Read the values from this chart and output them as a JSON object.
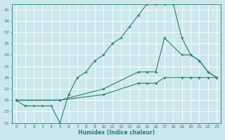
{
  "title": "",
  "xlabel": "Humidex (Indice chaleur)",
  "bg_color": "#cce8ee",
  "line_color": "#2d7d6e",
  "grid_color": "#ffffff",
  "xlim": [
    -0.5,
    23.5
  ],
  "ylim": [
    21,
    42
  ],
  "yticks": [
    21,
    23,
    25,
    27,
    29,
    31,
    33,
    35,
    37,
    39,
    41
  ],
  "xticks": [
    0,
    1,
    2,
    3,
    4,
    5,
    6,
    7,
    8,
    9,
    10,
    11,
    12,
    13,
    14,
    15,
    16,
    17,
    18,
    19,
    20,
    21,
    22,
    23
  ],
  "line1_x": [
    0,
    1,
    2,
    3,
    4,
    5,
    6,
    7,
    8,
    9,
    10,
    11,
    12,
    13,
    14,
    15,
    16,
    17,
    18,
    19,
    20,
    21,
    22,
    23
  ],
  "line1_y": [
    25,
    24,
    24,
    24,
    24,
    21,
    26,
    29,
    30,
    32,
    33,
    35,
    36,
    38,
    40,
    42,
    42,
    42,
    42,
    36,
    33,
    32,
    30,
    29
  ],
  "line2_x": [
    0,
    5,
    10,
    14,
    15,
    16,
    17,
    19,
    20,
    21,
    22,
    23
  ],
  "line2_y": [
    25,
    25,
    27,
    30,
    30,
    30,
    36,
    33,
    33,
    32,
    30,
    29
  ],
  "line3_x": [
    0,
    5,
    10,
    14,
    15,
    16,
    17,
    19,
    20,
    21,
    22,
    23
  ],
  "line3_y": [
    25,
    25,
    26,
    28,
    28,
    28,
    29,
    29,
    29,
    29,
    29,
    29
  ]
}
